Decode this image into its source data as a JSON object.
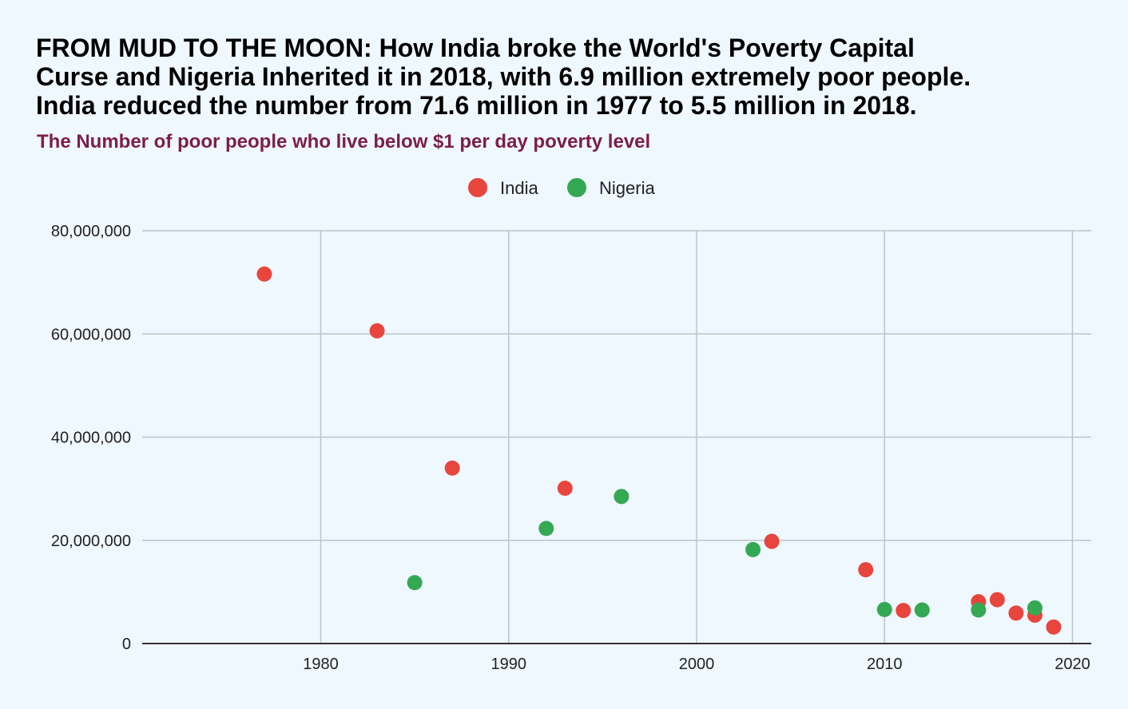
{
  "title_lines": [
    "FROM MUD TO THE MOON: How India broke the World's Poverty Capital",
    "Curse and Nigeria Inherited it in 2018, with 6.9 million extremely poor people.",
    "India reduced the number from 71.6 million in 1977 to 5.5 million in 2018."
  ],
  "subtitle": "The Number of poor people who live below $1 per day poverty level",
  "colors": {
    "background": "#eff7ff",
    "subtitle": "#7b1e4b",
    "grid": "#bfc4cc",
    "axis": "#333333"
  },
  "chart_data": {
    "type": "scatter",
    "title": "",
    "xlabel": "",
    "ylabel": "",
    "xlim": [
      1970.5,
      2021
    ],
    "ylim": [
      0,
      80000000
    ],
    "x_ticks": [
      1980,
      1990,
      2000,
      2010,
      2020
    ],
    "y_ticks": [
      0,
      20000000,
      40000000,
      60000000,
      80000000
    ],
    "x_tick_labels": [
      "1980",
      "1990",
      "2000",
      "2010",
      "2020"
    ],
    "y_tick_labels": [
      "0",
      "20,000,000",
      "40,000,000",
      "60,000,000",
      "80,000,000"
    ],
    "grid": true,
    "legend_position": "top-center",
    "series": [
      {
        "name": "India",
        "color": "#e8453c",
        "points": [
          {
            "x": 1977,
            "y": 71600000
          },
          {
            "x": 1983,
            "y": 60600000
          },
          {
            "x": 1987,
            "y": 34000000
          },
          {
            "x": 1993,
            "y": 30100000
          },
          {
            "x": 2004,
            "y": 19800000
          },
          {
            "x": 2009,
            "y": 14300000
          },
          {
            "x": 2011,
            "y": 6400000
          },
          {
            "x": 2015,
            "y": 8100000
          },
          {
            "x": 2016,
            "y": 8500000
          },
          {
            "x": 2017,
            "y": 5900000
          },
          {
            "x": 2018,
            "y": 5500000
          },
          {
            "x": 2019,
            "y": 3200000
          }
        ]
      },
      {
        "name": "Nigeria",
        "color": "#34a853",
        "points": [
          {
            "x": 1985,
            "y": 11800000
          },
          {
            "x": 1992,
            "y": 22300000
          },
          {
            "x": 1996,
            "y": 28500000
          },
          {
            "x": 2003,
            "y": 18200000
          },
          {
            "x": 2010,
            "y": 6600000
          },
          {
            "x": 2012,
            "y": 6500000
          },
          {
            "x": 2015,
            "y": 6500000
          },
          {
            "x": 2018,
            "y": 6900000
          }
        ]
      }
    ]
  }
}
